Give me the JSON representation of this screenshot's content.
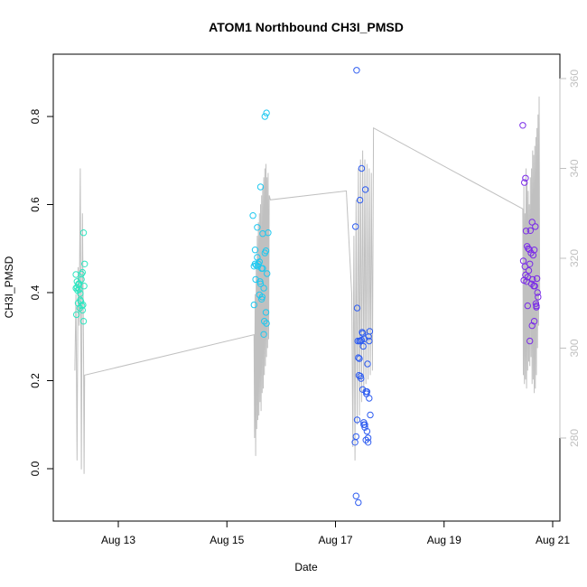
{
  "chart_data": {
    "type": "scatter",
    "title": "ATOM1 Northbound CH3I_PMSD",
    "xlabel": "Date",
    "ylabel": "CH3I_PMSD",
    "y2label": "",
    "xaxis": {
      "ticks": [
        {
          "label": "Aug 13",
          "day": 13
        },
        {
          "label": "Aug 15",
          "day": 15
        },
        {
          "label": "Aug 17",
          "day": 17
        },
        {
          "label": "Aug 19",
          "day": 19
        },
        {
          "label": "Aug 21",
          "day": 21
        }
      ]
    },
    "yaxis": {
      "ticks": [
        0.0,
        0.2,
        0.4,
        0.6,
        0.8
      ],
      "tick_labels": [
        "0.0",
        "0.2",
        "0.4",
        "0.6",
        "0.8"
      ]
    },
    "y2axis": {
      "ticks": [
        280,
        300,
        320,
        340,
        360
      ],
      "tick_labels": [
        "280",
        "300",
        "320",
        "340",
        "360"
      ]
    },
    "legend": "none",
    "grid": false,
    "colors": {
      "line": "#c0c0c0",
      "axis": "#000000",
      "axis2": "#c0c0c0"
    },
    "series": [
      {
        "color": "#2ee6c0",
        "x": [
          12.22,
          12.24,
          12.26,
          12.28,
          12.3,
          12.32,
          12.34,
          12.36,
          12.38,
          12.22,
          12.25,
          12.27,
          12.3,
          12.33,
          12.35,
          12.37,
          12.23,
          12.26,
          12.29,
          12.31,
          12.34,
          12.36,
          12.24,
          12.28,
          12.32
        ],
        "y": [
          0.441,
          0.425,
          0.418,
          0.407,
          0.398,
          0.43,
          0.446,
          0.536,
          0.465,
          0.41,
          0.405,
          0.42,
          0.383,
          0.37,
          0.372,
          0.415,
          0.35,
          0.376,
          0.365,
          0.38,
          0.36,
          0.335,
          0.412,
          0.42,
          0.442
        ]
      },
      {
        "color": "#1ec8f0",
        "x": [
          15.48,
          15.5,
          15.52,
          15.54,
          15.56,
          15.58,
          15.6,
          15.62,
          15.64,
          15.66,
          15.68,
          15.7,
          15.72,
          15.74,
          15.76,
          15.5,
          15.53,
          15.57,
          15.61,
          15.65,
          15.69,
          15.73,
          15.52,
          15.56,
          15.6,
          15.64,
          15.68,
          15.72,
          15.62,
          15.66,
          15.7,
          15.73
        ],
        "y": [
          0.575,
          0.46,
          0.497,
          0.462,
          0.548,
          0.465,
          0.47,
          0.64,
          0.455,
          0.534,
          0.41,
          0.49,
          0.495,
          0.443,
          0.536,
          0.372,
          0.43,
          0.46,
          0.425,
          0.39,
          0.335,
          0.33,
          0.465,
          0.48,
          0.395,
          0.385,
          0.305,
          0.355,
          0.42,
          0.455,
          0.8,
          0.808
        ]
      },
      {
        "color": "#2f5df0",
        "x": [
          17.36,
          17.38,
          17.4,
          17.42,
          17.44,
          17.46,
          17.48,
          17.5,
          17.52,
          17.54,
          17.56,
          17.58,
          17.6,
          17.62,
          17.64,
          17.37,
          17.39,
          17.41,
          17.43,
          17.45,
          17.47,
          17.49,
          17.51,
          17.53,
          17.55,
          17.57,
          17.59,
          17.61,
          17.63,
          17.4,
          17.44,
          17.48,
          17.52,
          17.56,
          17.6,
          17.38,
          17.42,
          17.46,
          17.5,
          17.54,
          17.58,
          17.62
        ],
        "y": [
          0.06,
          0.073,
          0.111,
          0.252,
          0.25,
          0.21,
          0.292,
          0.18,
          0.1,
          0.094,
          0.065,
          0.085,
          0.06,
          0.16,
          0.122,
          0.55,
          0.905,
          0.29,
          0.212,
          0.61,
          0.205,
          0.31,
          0.278,
          0.295,
          0.634,
          0.17,
          0.238,
          0.3,
          0.312,
          0.365,
          0.29,
          0.682,
          0.105,
          0.175,
          0.07,
          -0.062,
          -0.077,
          0.29,
          0.307,
          0.1,
          0.175,
          0.29
        ]
      },
      {
        "color": "#7a2be8",
        "x": [
          20.45,
          20.47,
          20.49,
          20.51,
          20.53,
          20.55,
          20.57,
          20.59,
          20.61,
          20.63,
          20.65,
          20.67,
          20.69,
          20.71,
          20.73,
          20.46,
          20.48,
          20.5,
          20.52,
          20.54,
          20.56,
          20.58,
          20.6,
          20.62,
          20.64,
          20.66,
          20.68,
          20.7,
          20.72,
          20.5,
          20.54,
          20.58,
          20.62,
          20.66,
          20.7
        ],
        "y": [
          0.78,
          0.428,
          0.459,
          0.54,
          0.505,
          0.5,
          0.498,
          0.541,
          0.42,
          0.43,
          0.415,
          0.415,
          0.375,
          0.432,
          0.39,
          0.472,
          0.65,
          0.66,
          0.425,
          0.435,
          0.45,
          0.465,
          0.49,
          0.56,
          0.485,
          0.497,
          0.55,
          0.367,
          0.4,
          0.44,
          0.37,
          0.29,
          0.325,
          0.335,
          0.37
        ]
      }
    ],
    "line": {
      "axis": "y2",
      "color": "#c0c0c0",
      "comment": "secondary-axis quantity plotted as grey line",
      "x": [
        12.2,
        12.22,
        12.24,
        12.26,
        12.28,
        12.3,
        12.32,
        12.34,
        12.36,
        12.37,
        12.38,
        15.5,
        15.51,
        15.52,
        15.53,
        15.54,
        15.55,
        15.56,
        15.57,
        15.58,
        15.59,
        15.6,
        15.61,
        15.62,
        15.63,
        15.64,
        15.65,
        15.66,
        15.67,
        15.68,
        15.69,
        15.7,
        15.71,
        15.72,
        15.73,
        15.74,
        15.75,
        15.76,
        15.77,
        15.78,
        15.8,
        17.2,
        17.3,
        17.32,
        17.34,
        17.36,
        17.38,
        17.4,
        17.42,
        17.44,
        17.46,
        17.48,
        17.5,
        17.52,
        17.54,
        17.56,
        17.58,
        17.6,
        17.62,
        17.64,
        17.66,
        17.68,
        17.7,
        20.45,
        20.46,
        20.47,
        20.48,
        20.49,
        20.5,
        20.51,
        20.52,
        20.53,
        20.54,
        20.55,
        20.56,
        20.57,
        20.58,
        20.59,
        20.6,
        20.61,
        20.62,
        20.63,
        20.64,
        20.65,
        20.66,
        20.67,
        20.68,
        20.69,
        20.7,
        20.71,
        20.72,
        20.73,
        20.74,
        20.75,
        20.76
      ],
      "y": [
        295,
        312,
        275,
        318,
        305,
        340,
        273,
        330,
        300,
        272,
        294,
        303,
        280,
        312,
        276,
        318,
        282,
        325,
        284,
        328,
        285,
        330,
        288,
        332,
        286,
        334,
        290,
        336,
        291,
        338,
        294,
        340,
        296,
        341,
        298,
        338,
        300,
        339,
        302,
        334,
        333,
        335,
        312,
        278,
        325,
        275,
        333,
        283,
        340,
        285,
        342,
        288,
        344,
        290,
        342,
        292,
        341,
        293,
        340,
        294,
        339,
        295,
        349,
        331,
        294,
        336,
        292,
        330,
        293,
        340,
        291,
        337,
        295,
        335,
        297,
        332,
        296,
        338,
        298,
        340,
        292,
        344,
        293,
        343,
        290,
        345,
        291,
        347,
        294,
        349,
        300,
        352,
        305,
        356,
        312
      ]
    }
  }
}
